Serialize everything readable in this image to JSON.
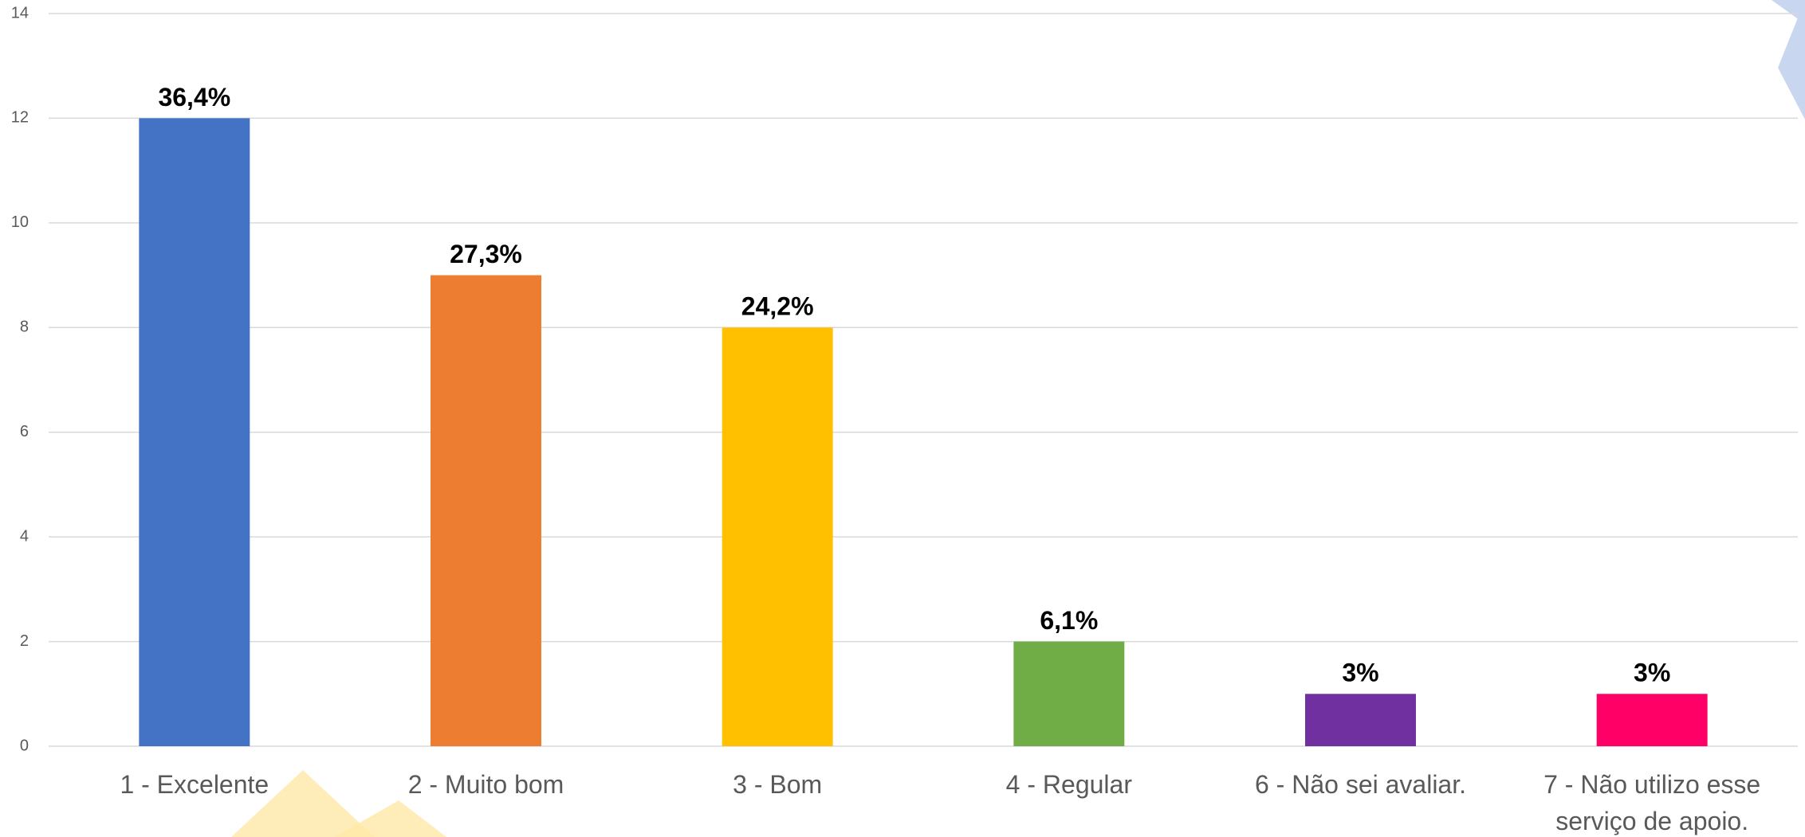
{
  "chart_data": {
    "type": "bar",
    "categories": [
      "1 - Excelente",
      "2 - Muito bom",
      "3 - Bom",
      "4 - Regular",
      "6 - Não sei avaliar.",
      "7 - Não utilizo esse serviço de apoio."
    ],
    "values": [
      12,
      9,
      8,
      2,
      1,
      1
    ],
    "value_labels": [
      "36,4%",
      "27,3%",
      "24,2%",
      "6,1%",
      "3%",
      "3%"
    ],
    "colors": [
      "#4472c4",
      "#ed7d31",
      "#ffc000",
      "#70ad47",
      "#7030a0",
      "#ff0066"
    ],
    "ylim": [
      0,
      14
    ],
    "yticks": [
      0,
      2,
      4,
      6,
      8,
      10,
      12,
      14
    ],
    "grid": true
  }
}
